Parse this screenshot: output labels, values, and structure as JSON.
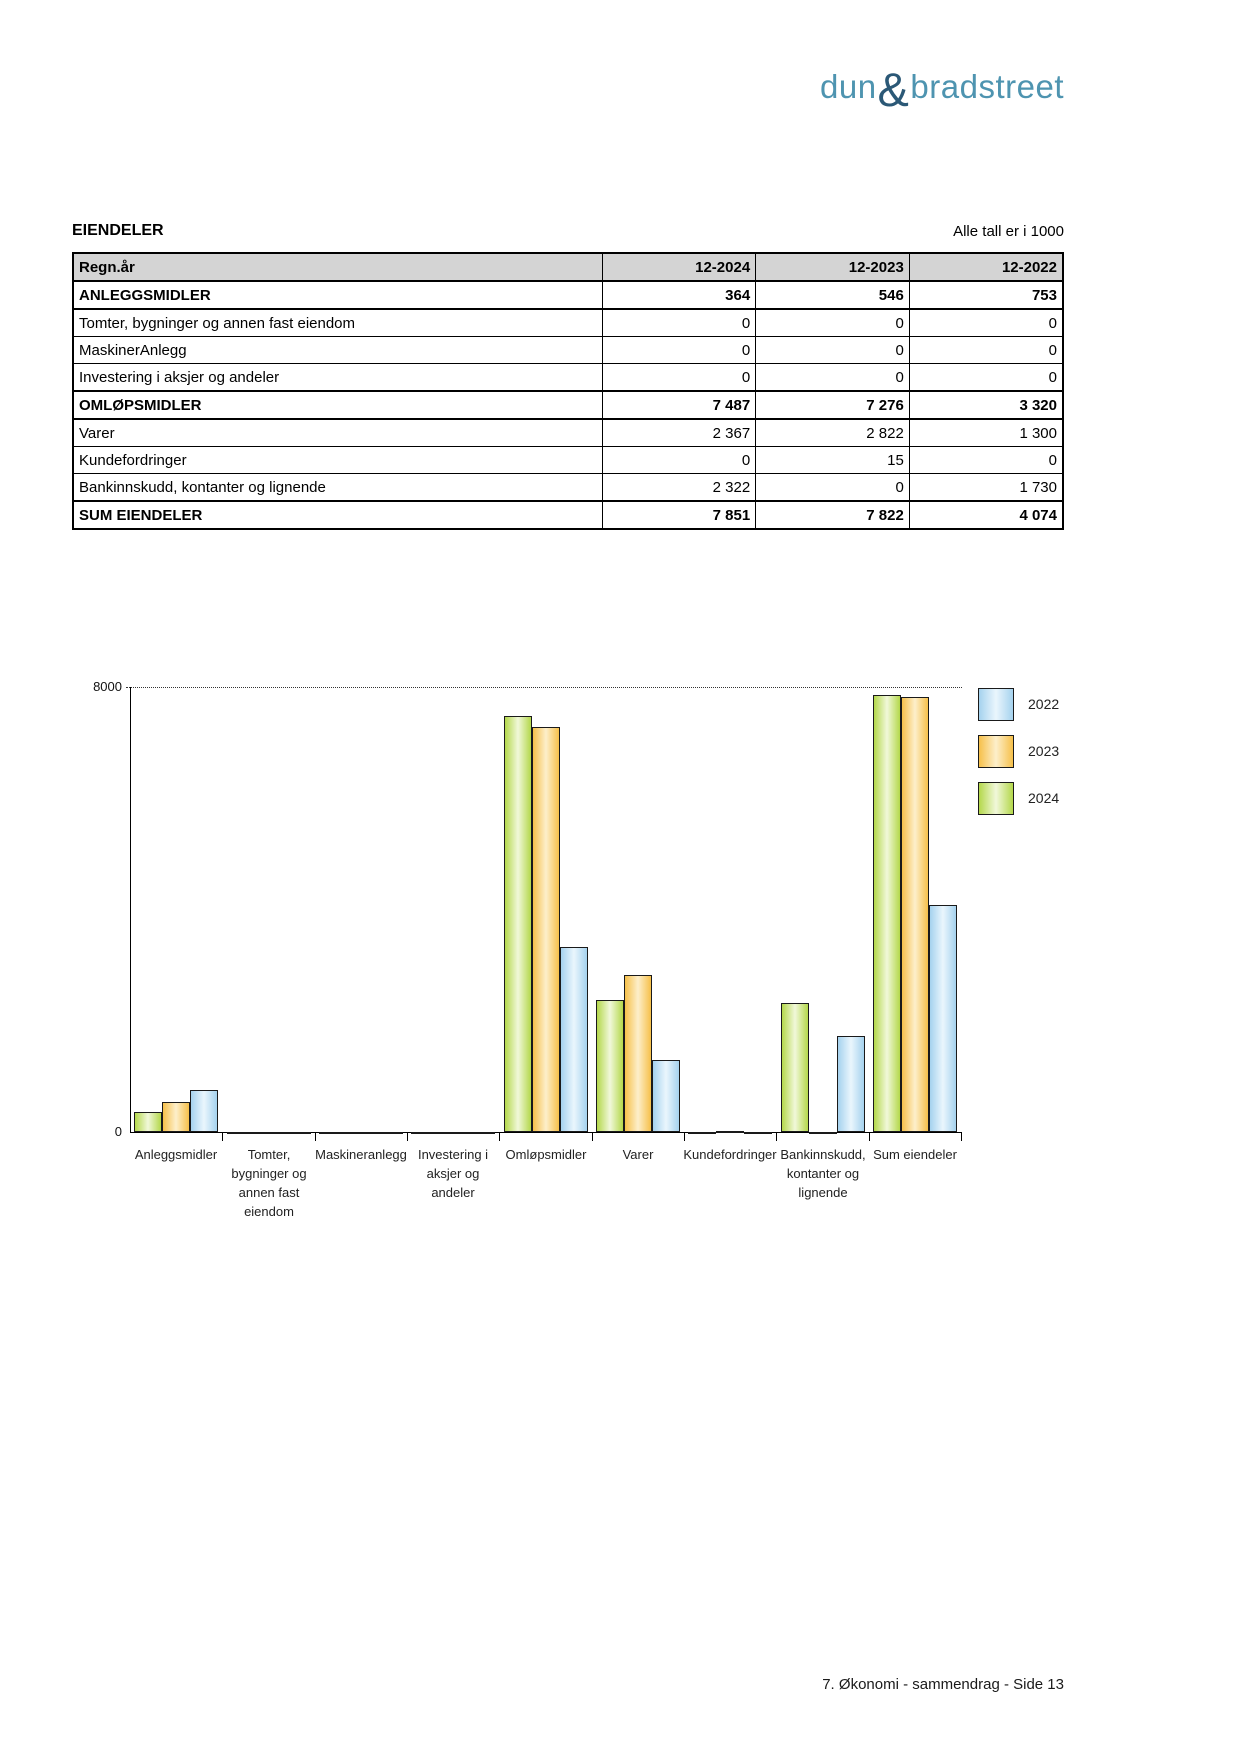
{
  "logo": {
    "part1": "dun",
    "amp": "&",
    "part2": "bradstreet",
    "color_text": "#4E94B0",
    "color_amp": "#2B5876"
  },
  "header": {
    "title": "EIENDELER",
    "note": "Alle tall er i 1000"
  },
  "table": {
    "columns": [
      "Regn.år",
      "12-2024",
      "12-2023",
      "12-2022"
    ],
    "rows": [
      {
        "label": "ANLEGGSMIDLER",
        "values": [
          "364",
          "546",
          "753"
        ]
      },
      {
        "label": "Tomter, bygninger og annen fast eiendom",
        "values": [
          "0",
          "0",
          "0"
        ]
      },
      {
        "label": "MaskinerAnlegg",
        "values": [
          "0",
          "0",
          "0"
        ]
      },
      {
        "label": "Investering i aksjer og andeler",
        "values": [
          "0",
          "0",
          "0"
        ]
      },
      {
        "label": "OMLØPSMIDLER",
        "values": [
          "7 487",
          "7 276",
          "3 320"
        ]
      },
      {
        "label": "Varer",
        "values": [
          "2 367",
          "2 822",
          "1 300"
        ]
      },
      {
        "label": "Kundefordringer",
        "values": [
          "0",
          "15",
          "0"
        ]
      },
      {
        "label": "Bankinnskudd, kontanter og lignende",
        "values": [
          "2 322",
          "0",
          "1 730"
        ]
      },
      {
        "label": "SUM EIENDELER",
        "values": [
          "7 851",
          "7 822",
          "4 074"
        ]
      }
    ]
  },
  "chart_data": {
    "type": "bar",
    "title": "",
    "xlabel": "",
    "ylabel": "",
    "ylim": [
      0,
      8000
    ],
    "yticks": [
      {
        "value": 0,
        "label": "0"
      },
      {
        "value": 8000,
        "label": "8000"
      }
    ],
    "grid": "single dotted gridline at 8000",
    "legend_position": "top-right",
    "categories": [
      "Anleggsmidler",
      "Tomter, bygninger og annen fast eiendom",
      "Maskineranlegg",
      "Investering i aksjer og andeler",
      "Omløpsmidler",
      "Varer",
      "Kundefordringer",
      "Bankinnskudd, kontanter og lignende",
      "Sum eiendeler"
    ],
    "category_lines": [
      [
        "Anleggsmidler"
      ],
      [
        "Tomter,",
        "bygninger og",
        "annen fast",
        "eiendom"
      ],
      [
        "Maskineranlegg"
      ],
      [
        "Investering i",
        "aksjer og",
        "andeler"
      ],
      [
        "Omløpsmidler"
      ],
      [
        "Varer"
      ],
      [
        "Kundefordringer"
      ],
      [
        "Bankinnskudd,",
        "kontanter og",
        "lignende"
      ],
      [
        "Sum eiendeler"
      ]
    ],
    "series": [
      {
        "name": "2024",
        "values": [
          364,
          0,
          0,
          0,
          7487,
          2367,
          0,
          2322,
          7851
        ],
        "color_edge": "#B4D84B",
        "color_mid": "#F1F8DA"
      },
      {
        "name": "2023",
        "values": [
          546,
          0,
          0,
          0,
          7276,
          2822,
          15,
          0,
          7822
        ],
        "color_edge": "#F6C04A",
        "color_mid": "#FDEFCB"
      },
      {
        "name": "2022",
        "values": [
          753,
          0,
          0,
          0,
          3320,
          1300,
          0,
          1730,
          4074
        ],
        "color_edge": "#A5D2EE",
        "color_mid": "#EAF6FD"
      }
    ],
    "legend": [
      {
        "label": "2022"
      },
      {
        "label": "2023"
      },
      {
        "label": "2024"
      }
    ]
  },
  "footer": {
    "text": "7. Økonomi - sammendrag - Side 13"
  }
}
